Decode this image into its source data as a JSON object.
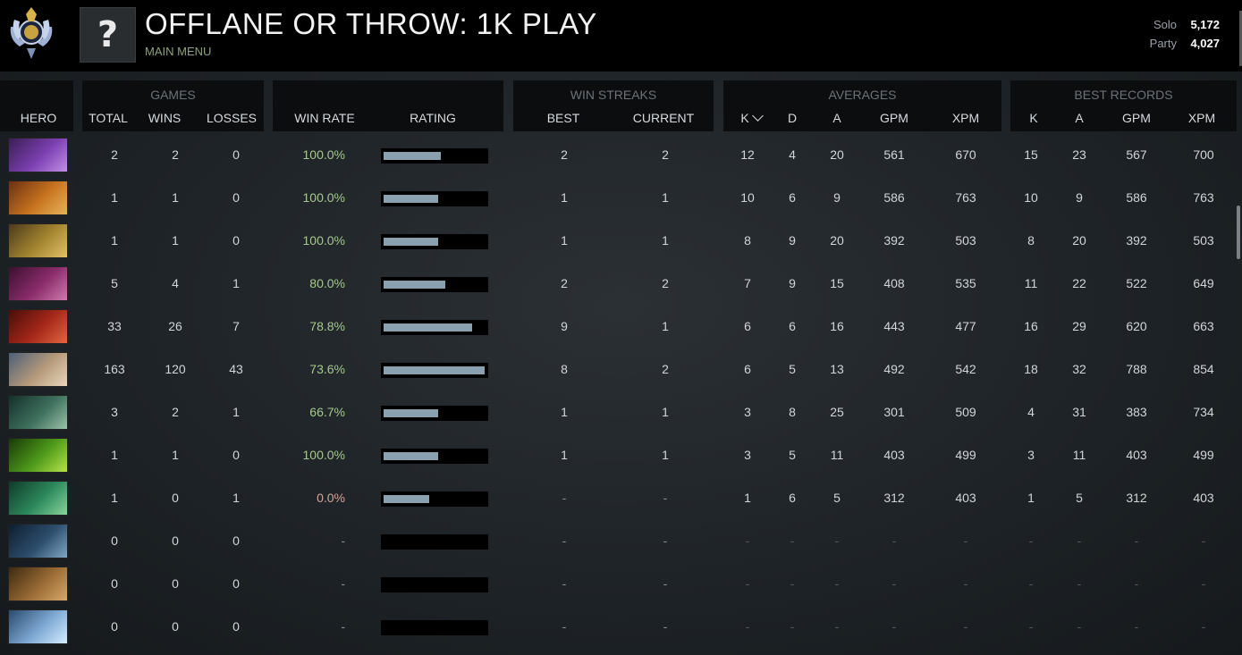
{
  "header": {
    "title": "OFFLANE OR THROW: 1K PLAY",
    "subtitle": "MAIN MENU",
    "avatar_glyph": "?",
    "mmr": [
      {
        "label": "Solo",
        "value": "5,172"
      },
      {
        "label": "Party",
        "value": "4,027"
      }
    ]
  },
  "groups": {
    "games": "GAMES",
    "win_streaks": "WIN STREAKS",
    "averages": "AVERAGES",
    "best_records": "BEST RECORDS"
  },
  "columns": {
    "hero": "HERO",
    "total": "TOTAL",
    "wins": "WINS",
    "losses": "LOSSES",
    "win_rate": "WIN RATE",
    "rating": "RATING",
    "best": "BEST",
    "current": "CURRENT",
    "avg_k": "K",
    "avg_d": "D",
    "avg_a": "A",
    "avg_gpm": "GPM",
    "avg_xpm": "XPM",
    "best_k": "K",
    "best_a": "A",
    "best_gpm": "GPM",
    "best_xpm": "XPM"
  },
  "rows": [
    {
      "hero": "faceless-void",
      "colors": [
        "#3a1f55",
        "#7b3fb0",
        "#c38fe8"
      ],
      "total": "2",
      "wins": "2",
      "losses": "0",
      "win_rate": "100.0%",
      "rating": 0.56,
      "best": "2",
      "current": "2",
      "k": "12",
      "d": "4",
      "a": "20",
      "gpm": "561",
      "xpm": "670",
      "bk": "15",
      "ba": "23",
      "bgpm": "567",
      "bxpm": "700"
    },
    {
      "hero": "bounty-hunter",
      "colors": [
        "#6b2f12",
        "#c8741f",
        "#e6b45a"
      ],
      "total": "1",
      "wins": "1",
      "losses": "0",
      "win_rate": "100.0%",
      "rating": 0.53,
      "best": "1",
      "current": "1",
      "k": "10",
      "d": "6",
      "a": "9",
      "gpm": "586",
      "xpm": "763",
      "bk": "10",
      "ba": "9",
      "bgpm": "586",
      "bxpm": "763"
    },
    {
      "hero": "tusk",
      "colors": [
        "#4b3a1c",
        "#a3852f",
        "#e3c06a"
      ],
      "total": "1",
      "wins": "1",
      "losses": "0",
      "win_rate": "100.0%",
      "rating": 0.53,
      "best": "1",
      "current": "1",
      "k": "8",
      "d": "9",
      "a": "20",
      "gpm": "392",
      "xpm": "503",
      "bk": "8",
      "ba": "20",
      "bgpm": "392",
      "bxpm": "503"
    },
    {
      "hero": "queen-of-pain",
      "colors": [
        "#3b1030",
        "#8a2c6a",
        "#d07ab0"
      ],
      "total": "5",
      "wins": "4",
      "losses": "1",
      "win_rate": "80.0%",
      "rating": 0.6,
      "best": "2",
      "current": "2",
      "k": "7",
      "d": "9",
      "a": "15",
      "gpm": "408",
      "xpm": "535",
      "bk": "11",
      "ba": "22",
      "bgpm": "522",
      "bxpm": "649"
    },
    {
      "hero": "juggernaut",
      "colors": [
        "#4a0d08",
        "#a5281a",
        "#e2673f"
      ],
      "total": "33",
      "wins": "26",
      "losses": "7",
      "win_rate": "78.8%",
      "rating": 0.86,
      "best": "9",
      "current": "1",
      "k": "6",
      "d": "6",
      "a": "16",
      "gpm": "443",
      "xpm": "477",
      "bk": "16",
      "ba": "29",
      "bgpm": "620",
      "bxpm": "663"
    },
    {
      "hero": "kunkka",
      "colors": [
        "#4d5f78",
        "#b59a7a",
        "#e9d6bd"
      ],
      "total": "163",
      "wins": "120",
      "losses": "43",
      "win_rate": "73.6%",
      "rating": 0.98,
      "best": "8",
      "current": "2",
      "k": "6",
      "d": "5",
      "a": "13",
      "gpm": "492",
      "xpm": "542",
      "bk": "18",
      "ba": "32",
      "bgpm": "788",
      "bxpm": "854"
    },
    {
      "hero": "dark-seer",
      "colors": [
        "#15302a",
        "#3e6f5d",
        "#9bc3a8"
      ],
      "total": "3",
      "wins": "2",
      "losses": "1",
      "win_rate": "66.7%",
      "rating": 0.53,
      "best": "1",
      "current": "1",
      "k": "3",
      "d": "8",
      "a": "25",
      "gpm": "301",
      "xpm": "509",
      "bk": "4",
      "ba": "31",
      "bgpm": "383",
      "bxpm": "734"
    },
    {
      "hero": "pugna",
      "colors": [
        "#183a08",
        "#4f9a1a",
        "#b7e34a"
      ],
      "total": "1",
      "wins": "1",
      "losses": "0",
      "win_rate": "100.0%",
      "rating": 0.53,
      "best": "1",
      "current": "1",
      "k": "3",
      "d": "5",
      "a": "11",
      "gpm": "403",
      "xpm": "499",
      "bk": "3",
      "ba": "11",
      "bgpm": "403",
      "bxpm": "499"
    },
    {
      "hero": "tidehunter",
      "colors": [
        "#0f3a2a",
        "#2d8a5d",
        "#8ad49c"
      ],
      "total": "1",
      "wins": "0",
      "losses": "1",
      "win_rate": "0.0%",
      "rating": 0.44,
      "best": "-",
      "current": "-",
      "k": "1",
      "d": "6",
      "a": "5",
      "gpm": "312",
      "xpm": "403",
      "bk": "1",
      "ba": "5",
      "bgpm": "312",
      "bxpm": "403"
    },
    {
      "hero": "abaddon",
      "colors": [
        "#0d1e2e",
        "#2d4d6c",
        "#7fa6c4"
      ],
      "total": "0",
      "wins": "0",
      "losses": "0",
      "win_rate": "-",
      "rating": 0,
      "best": "-",
      "current": "-",
      "k": "-",
      "d": "-",
      "a": "-",
      "gpm": "-",
      "xpm": "-",
      "bk": "-",
      "ba": "-",
      "bgpm": "-",
      "bxpm": "-"
    },
    {
      "hero": "alchemist",
      "colors": [
        "#3e2a10",
        "#9a6b35",
        "#d8a96a"
      ],
      "total": "0",
      "wins": "0",
      "losses": "0",
      "win_rate": "-",
      "rating": 0,
      "best": "-",
      "current": "-",
      "k": "-",
      "d": "-",
      "a": "-",
      "gpm": "-",
      "xpm": "-",
      "bk": "-",
      "ba": "-",
      "bgpm": "-",
      "bxpm": "-"
    },
    {
      "hero": "ancient-apparition",
      "colors": [
        "#2b4a6e",
        "#7ea9d3",
        "#d6ecff"
      ],
      "total": "0",
      "wins": "0",
      "losses": "0",
      "win_rate": "-",
      "rating": 0,
      "best": "-",
      "current": "-",
      "k": "-",
      "d": "-",
      "a": "-",
      "gpm": "-",
      "xpm": "-",
      "bk": "-",
      "ba": "-",
      "bgpm": "-",
      "bxpm": "-"
    }
  ]
}
